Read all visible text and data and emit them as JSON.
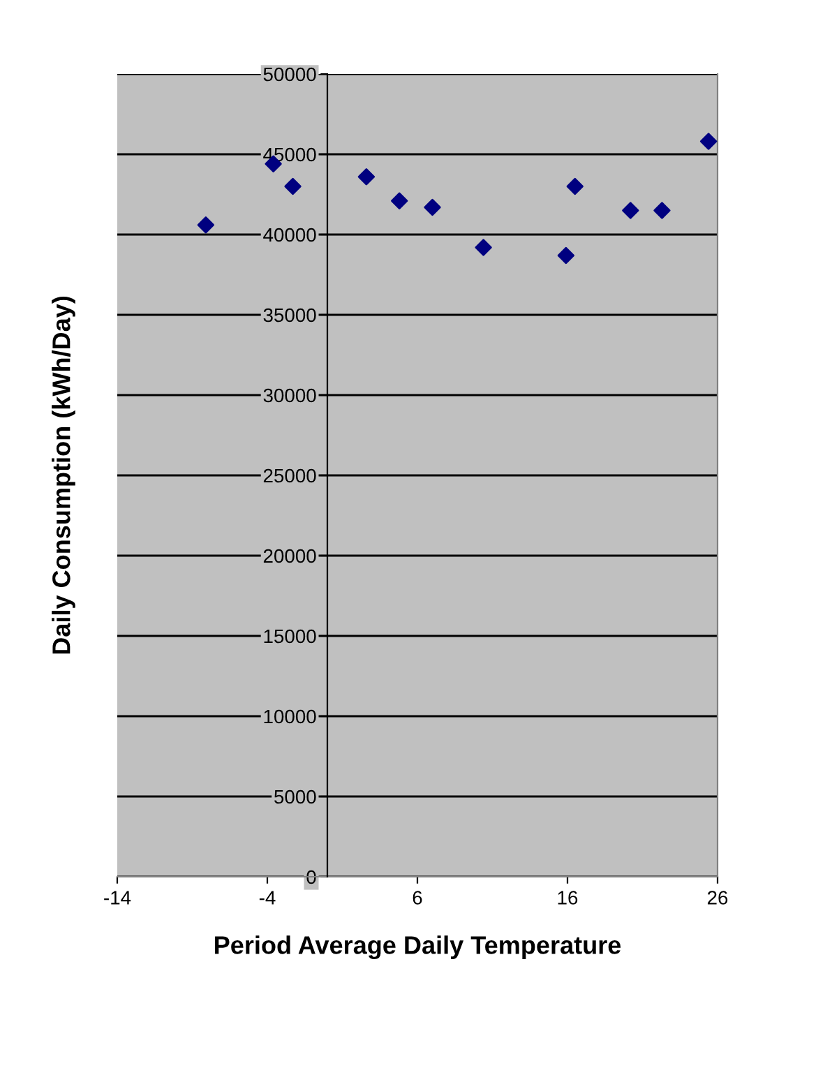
{
  "chart_data": {
    "type": "scatter",
    "xlabel": "Period Average Daily Temperature",
    "ylabel": "Daily Consumption (kWh/Day)",
    "x": [
      -8.1,
      -3.6,
      -2.3,
      2.6,
      4.8,
      7.0,
      10.4,
      15.9,
      16.5,
      20.2,
      22.3,
      25.4
    ],
    "series": [
      {
        "color": "#000080",
        "values": [
          40600,
          44400,
          43000,
          43600,
          42100,
          41700,
          39200,
          38700,
          43000,
          41500,
          41500,
          45800
        ]
      }
    ],
    "xlim": [
      -14,
      26
    ],
    "xticks": [
      -14,
      -4,
      6,
      16,
      26
    ],
    "ylim": [
      0,
      50000
    ],
    "yticks": [
      0,
      5000,
      10000,
      15000,
      20000,
      25000,
      30000,
      35000,
      40000,
      45000,
      50000
    ],
    "grid": "y",
    "marker": "diamond",
    "legend": false
  }
}
